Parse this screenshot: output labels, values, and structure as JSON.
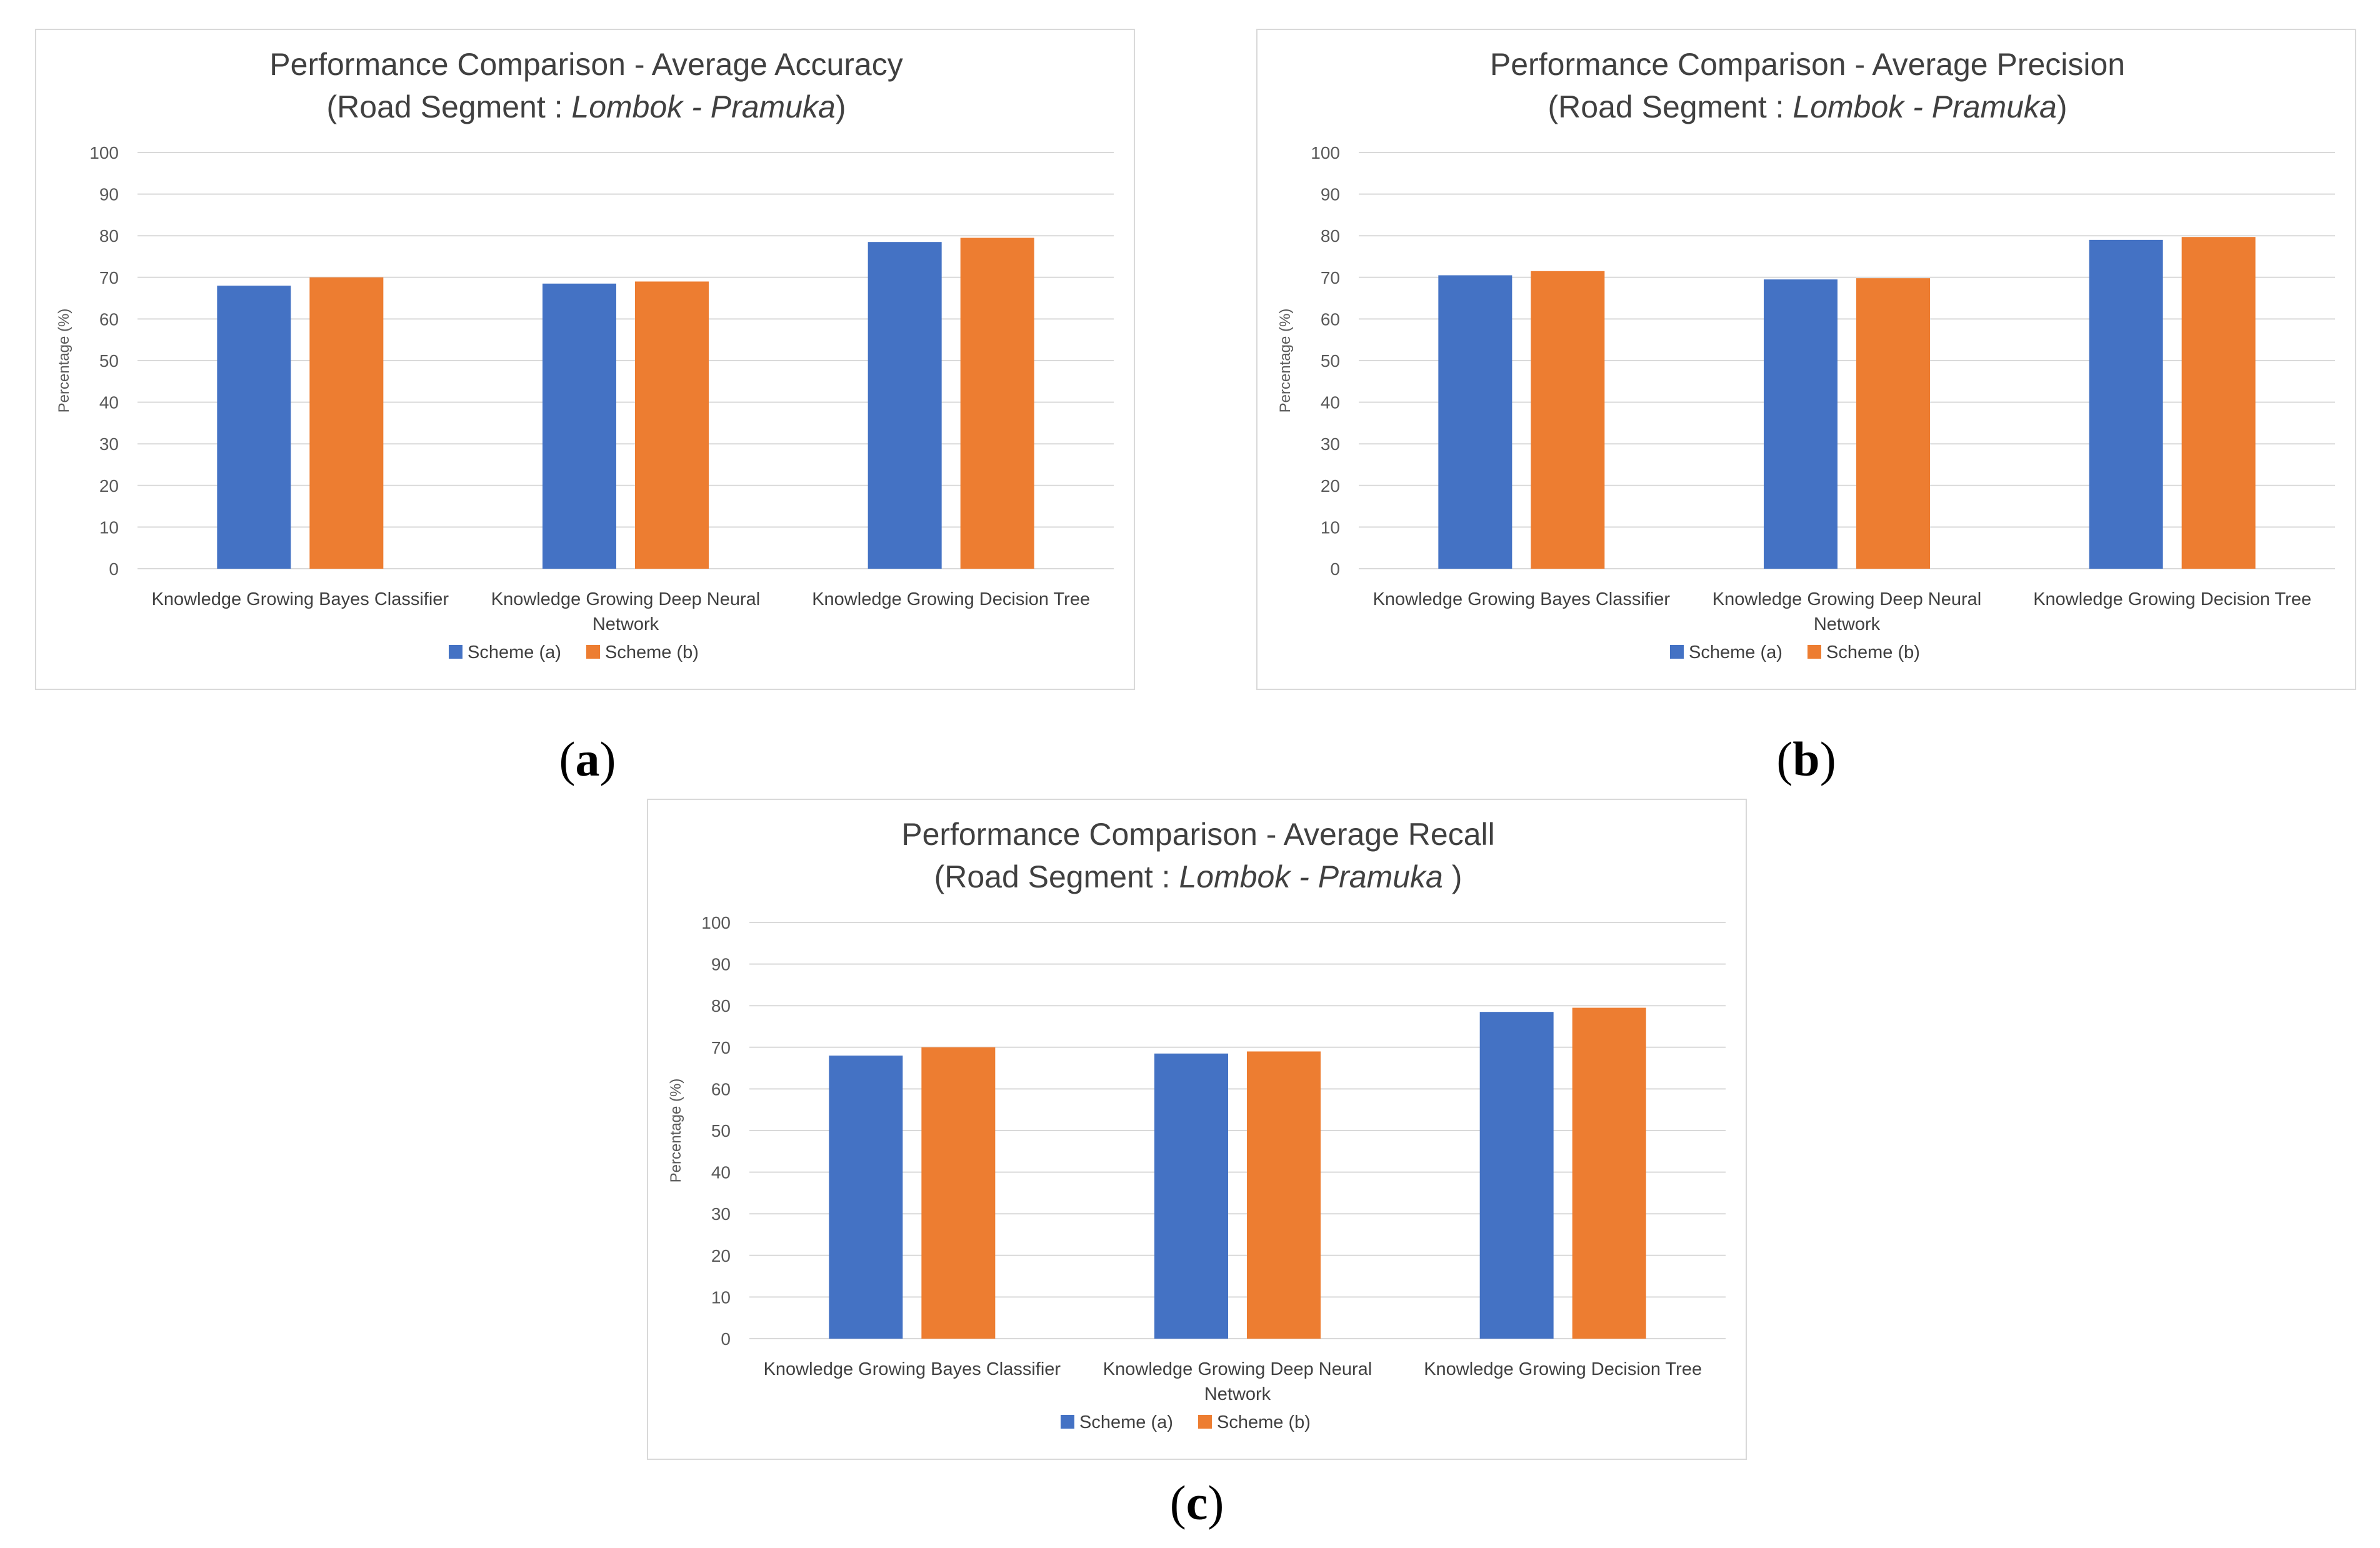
{
  "chart_data": [
    {
      "id": "a",
      "type": "bar",
      "title": "Performance Comparison - Average Accuracy",
      "subtitle_prefix": "(Road Segment : ",
      "subtitle_road_start": "Lombok",
      "subtitle_separator": " - ",
      "subtitle_road_end": "Pramuka",
      "subtitle_suffix": ")",
      "ylabel": "Percentage (%)",
      "xlabel": "",
      "ylim": [
        0,
        100
      ],
      "yticks": [
        "0",
        "10",
        "20",
        "30",
        "40",
        "50",
        "60",
        "70",
        "80",
        "90",
        "100"
      ],
      "grid": true,
      "legend_position": "bottom",
      "categories": [
        [
          "Knowledge Growing Bayes Classifier"
        ],
        [
          "Knowledge Growing Deep Neural",
          "Network"
        ],
        [
          "Knowledge Growing Decision Tree"
        ]
      ],
      "series": [
        {
          "name": "Scheme (a)",
          "color": "#4472c4",
          "values": [
            68,
            68.5,
            78.5
          ]
        },
        {
          "name": "Scheme (b)",
          "color": "#ed7d31",
          "values": [
            70,
            69,
            79.5
          ]
        }
      ],
      "caption": "a"
    },
    {
      "id": "b",
      "type": "bar",
      "title": "Performance Comparison - Average Precision",
      "subtitle_prefix": "(Road Segment : ",
      "subtitle_road_start": "Lombok",
      "subtitle_separator": " - ",
      "subtitle_road_end": "Pramuka",
      "subtitle_suffix": ")",
      "ylabel": "Percentage (%)",
      "xlabel": "",
      "ylim": [
        0,
        100
      ],
      "yticks": [
        "0",
        "10",
        "20",
        "30",
        "40",
        "50",
        "60",
        "70",
        "80",
        "90",
        "100"
      ],
      "grid": true,
      "legend_position": "bottom",
      "categories": [
        [
          "Knowledge Growing Bayes Classifier"
        ],
        [
          "Knowledge Growing Deep Neural",
          "Network"
        ],
        [
          "Knowledge Growing Decision Tree"
        ]
      ],
      "series": [
        {
          "name": "Scheme (a)",
          "color": "#4472c4",
          "values": [
            70.5,
            69.5,
            79
          ]
        },
        {
          "name": "Scheme (b)",
          "color": "#ed7d31",
          "values": [
            71.5,
            69.8,
            79.7
          ]
        }
      ],
      "caption": "b"
    },
    {
      "id": "c",
      "type": "bar",
      "title": "Performance Comparison - Average Recall",
      "subtitle_prefix": "(Road Segment : ",
      "subtitle_road_start": "Lombok",
      "subtitle_separator": " - ",
      "subtitle_road_end": "Pramuka",
      "subtitle_suffix": " )",
      "ylabel": "Percentage (%)",
      "xlabel": "",
      "ylim": [
        0,
        100
      ],
      "yticks": [
        "0",
        "10",
        "20",
        "30",
        "40",
        "50",
        "60",
        "70",
        "80",
        "90",
        "100"
      ],
      "grid": true,
      "legend_position": "bottom",
      "categories": [
        [
          "Knowledge Growing Bayes Classifier"
        ],
        [
          "Knowledge Growing Deep Neural",
          "Network"
        ],
        [
          "Knowledge Growing Decision Tree"
        ]
      ],
      "series": [
        {
          "name": "Scheme (a)",
          "color": "#4472c4",
          "values": [
            68,
            68.5,
            78.5
          ]
        },
        {
          "name": "Scheme (b)",
          "color": "#ed7d31",
          "values": [
            70,
            69,
            79.5
          ]
        }
      ],
      "caption": "c"
    }
  ]
}
